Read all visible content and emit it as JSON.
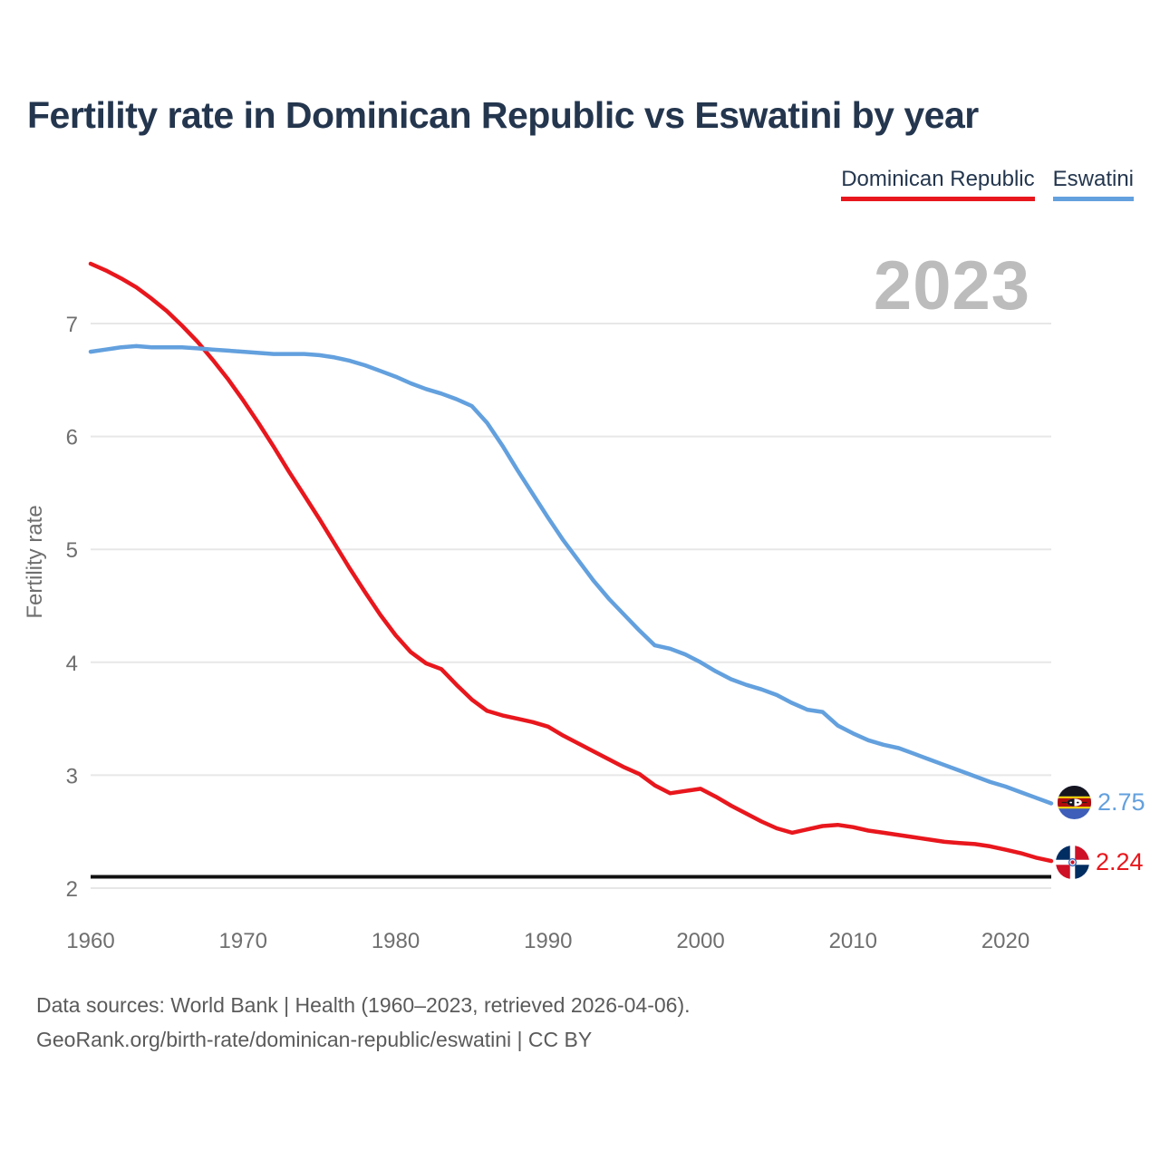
{
  "page": {
    "title": "Fertility rate in Dominican Republic vs Eswatini by year",
    "watermark_year": "2023",
    "footer_line1": "Data sources: World Bank | Health (1960–2023, retrieved 2026-04-06).",
    "footer_line2": "GeoRank.org/birth-rate/dominican-republic/eswatini | CC BY"
  },
  "legend": [
    {
      "label": "Dominican Republic",
      "color": "#e8171d"
    },
    {
      "label": "Eswatini",
      "color": "#63a0de"
    }
  ],
  "chart_data": {
    "type": "line",
    "title": "Fertility rate in Dominican Republic vs Eswatini by year",
    "xlabel": "",
    "ylabel": "Fertility rate",
    "xlim": [
      1960,
      2023
    ],
    "ylim": [
      2,
      7.6
    ],
    "x_ticks": [
      1960,
      1970,
      1980,
      1990,
      2000,
      2010,
      2020
    ],
    "y_ticks": [
      2,
      3,
      4,
      5,
      6,
      7
    ],
    "grid": "horizontal",
    "legend_position": "top-right",
    "reference_line": {
      "value": 2.1,
      "color": "#111111"
    },
    "x": [
      1960,
      1961,
      1962,
      1963,
      1964,
      1965,
      1966,
      1967,
      1968,
      1969,
      1970,
      1971,
      1972,
      1973,
      1974,
      1975,
      1976,
      1977,
      1978,
      1979,
      1980,
      1981,
      1982,
      1983,
      1984,
      1985,
      1986,
      1987,
      1988,
      1989,
      1990,
      1991,
      1992,
      1993,
      1994,
      1995,
      1996,
      1997,
      1998,
      1999,
      2000,
      2001,
      2002,
      2003,
      2004,
      2005,
      2006,
      2007,
      2008,
      2009,
      2010,
      2011,
      2012,
      2013,
      2014,
      2015,
      2016,
      2017,
      2018,
      2019,
      2020,
      2021,
      2022,
      2023
    ],
    "series": [
      {
        "name": "Dominican Republic",
        "color": "#e8171d",
        "end_label": "2.24",
        "values": [
          7.53,
          7.47,
          7.4,
          7.32,
          7.22,
          7.11,
          6.98,
          6.84,
          6.68,
          6.51,
          6.32,
          6.12,
          5.91,
          5.69,
          5.48,
          5.27,
          5.05,
          4.83,
          4.62,
          4.42,
          4.24,
          4.09,
          3.99,
          3.94,
          3.8,
          3.67,
          3.57,
          3.53,
          3.5,
          3.47,
          3.43,
          3.35,
          3.28,
          3.21,
          3.14,
          3.07,
          3.01,
          2.91,
          2.84,
          2.86,
          2.88,
          2.81,
          2.73,
          2.66,
          2.59,
          2.53,
          2.49,
          2.52,
          2.55,
          2.56,
          2.54,
          2.51,
          2.49,
          2.47,
          2.45,
          2.43,
          2.41,
          2.4,
          2.39,
          2.37,
          2.34,
          2.31,
          2.27,
          2.24
        ]
      },
      {
        "name": "Eswatini",
        "color": "#63a0de",
        "end_label": "2.75",
        "values": [
          6.75,
          6.77,
          6.79,
          6.8,
          6.79,
          6.79,
          6.79,
          6.78,
          6.77,
          6.76,
          6.75,
          6.74,
          6.73,
          6.73,
          6.73,
          6.72,
          6.7,
          6.67,
          6.63,
          6.58,
          6.53,
          6.47,
          6.42,
          6.38,
          6.33,
          6.27,
          6.12,
          5.92,
          5.7,
          5.49,
          5.28,
          5.08,
          4.9,
          4.72,
          4.56,
          4.42,
          4.28,
          4.15,
          4.12,
          4.07,
          4.0,
          3.92,
          3.85,
          3.8,
          3.76,
          3.71,
          3.64,
          3.58,
          3.56,
          3.44,
          3.37,
          3.31,
          3.27,
          3.24,
          3.19,
          3.14,
          3.09,
          3.04,
          2.99,
          2.94,
          2.9,
          2.85,
          2.8,
          2.75
        ]
      }
    ]
  }
}
